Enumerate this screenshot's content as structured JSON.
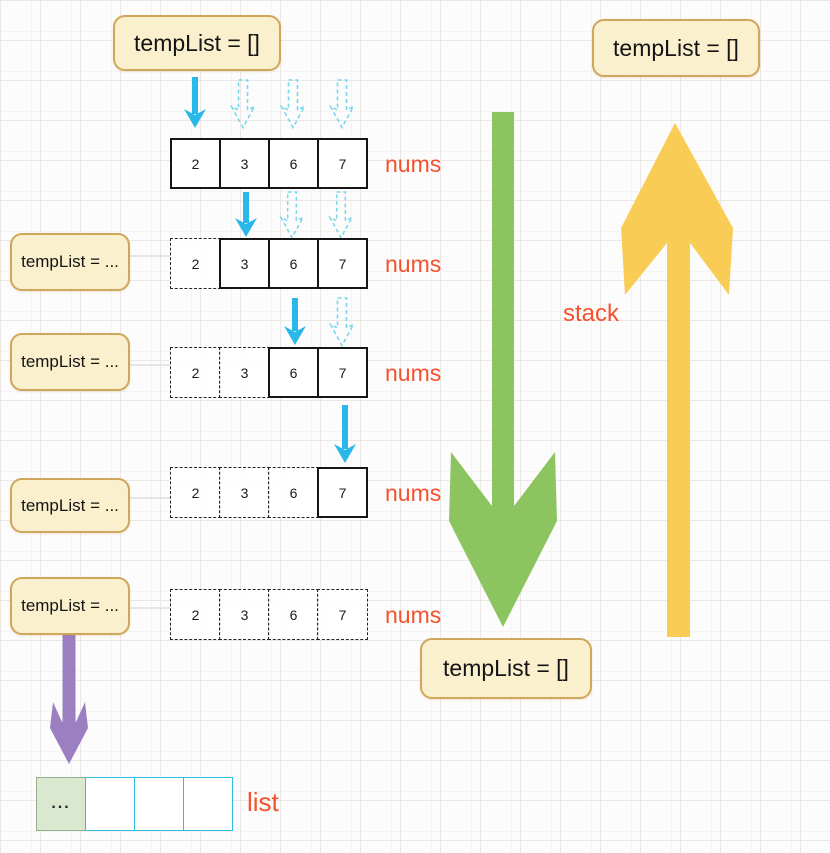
{
  "temp_list_boxes": {
    "top": "tempList = []",
    "right": "tempList = []",
    "bottom": "tempList = []",
    "left": [
      "tempList = ...",
      "tempList = ...",
      "tempList = ...",
      "tempList = ..."
    ]
  },
  "nums_label": "nums",
  "stack_label": "stack",
  "list_label": "list",
  "nums_rows": [
    {
      "values": [
        "2",
        "3",
        "6",
        "7"
      ],
      "states": [
        "solid",
        "solid",
        "solid",
        "solid"
      ]
    },
    {
      "values": [
        "2",
        "3",
        "6",
        "7"
      ],
      "states": [
        "dashed",
        "solid",
        "solid",
        "solid"
      ]
    },
    {
      "values": [
        "2",
        "3",
        "6",
        "7"
      ],
      "states": [
        "dashed",
        "dashed",
        "solid",
        "solid"
      ]
    },
    {
      "values": [
        "2",
        "3",
        "6",
        "7"
      ],
      "states": [
        "dashed",
        "dashed",
        "dashed",
        "solid"
      ]
    },
    {
      "values": [
        "2",
        "3",
        "6",
        "7"
      ],
      "states": [
        "dashed",
        "dashed",
        "dashed",
        "dashed"
      ]
    }
  ],
  "list_row": {
    "cells": [
      "...",
      "",
      "",
      ""
    ]
  },
  "colors": {
    "cyan": "#29B8E8",
    "cyanLight": "#7AD7EA",
    "green": "#8CC45F",
    "yellow": "#F9CD55",
    "purple": "#9C7FC1",
    "orange": "#F4512C",
    "boxBg": "#FAF0CD",
    "boxBorder": "#CFA75B",
    "listBorder": "#2BBFDB",
    "listCellBg": "#DAE8D0"
  }
}
